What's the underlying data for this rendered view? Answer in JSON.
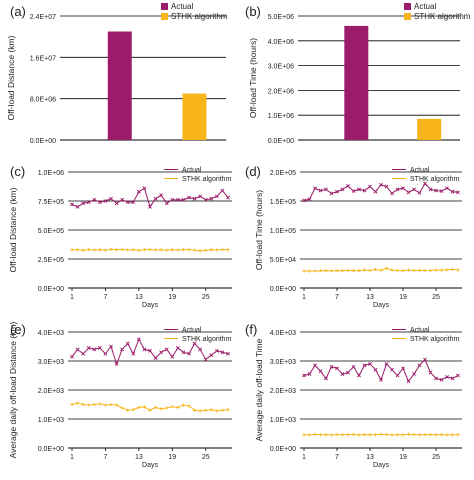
{
  "figure": {
    "background": "#ffffff",
    "colors": {
      "actual": "#9b1c6a",
      "sthk": "#f7b51b",
      "grid": "#000000",
      "text": "#222222"
    }
  },
  "chart_data": [
    {
      "panel": "(a)",
      "type": "bar",
      "categories": [
        "Actual",
        "STHK algorithm"
      ],
      "values": [
        21000000,
        9000000
      ],
      "ylabel": "Off-load Distance (km)",
      "yticks": [
        "0.0E+00",
        "8.0E+06",
        "1.6E+07",
        "2.4E+07"
      ],
      "ylim": [
        0,
        24000000
      ],
      "legend": [
        "Actual",
        "STHK algorithm"
      ],
      "grid": true
    },
    {
      "panel": "(b)",
      "type": "bar",
      "categories": [
        "Actual",
        "STHK algorithm"
      ],
      "values": [
        4600000,
        850000
      ],
      "ylabel": "Off-load Time (hours)",
      "yticks": [
        "0.0E+00",
        "1.0E+06",
        "2.0E+06",
        "3.0E+06",
        "4.0E+06",
        "5.0E+06"
      ],
      "ylim": [
        0,
        5000000
      ],
      "legend": [
        "Actual",
        "STHK algorithm"
      ],
      "grid": true
    },
    {
      "panel": "(c)",
      "type": "line",
      "xlabel": "Days",
      "ylabel": "Off-load Distance (km)",
      "xticks": [
        "1",
        "7",
        "13",
        "19",
        "25"
      ],
      "yticks": [
        "0.0E+00",
        "2.5E+05",
        "5.0E+05",
        "7.5E+05",
        "1.0E+06"
      ],
      "ylim": [
        0,
        1000000
      ],
      "xlim": [
        1,
        29
      ],
      "legend": [
        "Actual",
        "STHK algorithm"
      ],
      "series": [
        {
          "name": "Actual",
          "values": [
            720000,
            700000,
            730000,
            740000,
            760000,
            740000,
            750000,
            770000,
            730000,
            760000,
            740000,
            740000,
            830000,
            860000,
            700000,
            770000,
            800000,
            730000,
            760000,
            760000,
            760000,
            780000,
            770000,
            790000,
            760000,
            770000,
            790000,
            840000,
            780000
          ]
        },
        {
          "name": "STHK algorithm",
          "values": [
            330000,
            330000,
            325000,
            332000,
            328000,
            330000,
            326000,
            334000,
            330000,
            332000,
            328000,
            330000,
            325000,
            330000,
            332000,
            328000,
            330000,
            326000,
            330000,
            328000,
            332000,
            330000,
            326000,
            320000,
            325000,
            330000,
            328000,
            332000,
            330000
          ]
        }
      ]
    },
    {
      "panel": "(d)",
      "type": "line",
      "xlabel": "Days",
      "ylabel": "Off-load Time (hours)",
      "xticks": [
        "1",
        "7",
        "13",
        "19",
        "25"
      ],
      "yticks": [
        "0.0E+00",
        "5.0E+04",
        "1.0E+05",
        "1.5E+05",
        "2.0E+05"
      ],
      "ylim": [
        0,
        200000
      ],
      "xlim": [
        1,
        29
      ],
      "legend": [
        "Actual",
        "STHK algorithm"
      ],
      "series": [
        {
          "name": "Actual",
          "values": [
            151000,
            153000,
            172000,
            168000,
            170000,
            163000,
            166000,
            170000,
            176000,
            167000,
            170000,
            168000,
            175000,
            166000,
            178000,
            175000,
            163000,
            170000,
            172000,
            165000,
            170000,
            164000,
            180000,
            170000,
            168000,
            167000,
            172000,
            166000,
            165000
          ]
        },
        {
          "name": "STHK algorithm",
          "values": [
            29000,
            29500,
            29000,
            29800,
            30000,
            29500,
            30000,
            29800,
            30200,
            30000,
            29700,
            31000,
            30000,
            32000,
            30500,
            34000,
            31000,
            30000,
            29800,
            31000,
            30200,
            30500,
            30000,
            30200,
            31000,
            30800,
            31500,
            32000,
            31000
          ]
        }
      ]
    },
    {
      "panel": "(e)",
      "type": "line",
      "xlabel": "Days",
      "ylabel": "Average daily off-load Distance (km)",
      "xticks": [
        "1",
        "7",
        "13",
        "19",
        "25"
      ],
      "yticks": [
        "0.0E+00",
        "1.0E+03",
        "2.0E+03",
        "3.0E+03",
        "4.0E+03"
      ],
      "ylim": [
        0,
        4000
      ],
      "xlim": [
        1,
        29
      ],
      "legend": [
        "Actual",
        "STHK algorithm"
      ],
      "series": [
        {
          "name": "Actual",
          "values": [
            3150,
            3400,
            3250,
            3450,
            3400,
            3450,
            3250,
            3500,
            2900,
            3400,
            3600,
            3250,
            3750,
            3400,
            3350,
            3100,
            3300,
            3400,
            3150,
            3450,
            3300,
            3250,
            3600,
            3400,
            3050,
            3200,
            3350,
            3300,
            3250
          ]
        },
        {
          "name": "STHK algorithm",
          "values": [
            1500,
            1550,
            1500,
            1480,
            1500,
            1520,
            1480,
            1500,
            1480,
            1380,
            1300,
            1320,
            1400,
            1420,
            1300,
            1400,
            1350,
            1380,
            1420,
            1400,
            1480,
            1450,
            1300,
            1280,
            1300,
            1320,
            1280,
            1300,
            1320
          ]
        }
      ]
    },
    {
      "panel": "(f)",
      "type": "line",
      "xlabel": "Days",
      "ylabel": "Average daily off-load Time",
      "xticks": [
        "1",
        "7",
        "13",
        "19",
        "25"
      ],
      "yticks": [
        "0.0E+00",
        "1.0E+03",
        "2.0E+03",
        "3.0E+03",
        "4.0E+03"
      ],
      "ylim": [
        0,
        4000
      ],
      "xlim": [
        1,
        29
      ],
      "legend": [
        "Actual",
        "STHK algorithm"
      ],
      "series": [
        {
          "name": "Actual",
          "values": [
            2500,
            2550,
            2850,
            2650,
            2400,
            2800,
            2750,
            2550,
            2600,
            2800,
            2500,
            2850,
            2900,
            2700,
            2350,
            2900,
            2700,
            2500,
            2750,
            2300,
            2550,
            2850,
            3050,
            2600,
            2400,
            2350,
            2450,
            2400,
            2500
          ]
        },
        {
          "name": "STHK algorithm",
          "values": [
            460,
            450,
            470,
            455,
            460,
            450,
            465,
            455,
            460,
            470,
            450,
            460,
            455,
            460,
            470,
            465,
            450,
            460,
            455,
            470,
            460,
            455,
            460,
            465,
            455,
            460,
            450,
            455,
            460
          ]
        }
      ]
    }
  ]
}
